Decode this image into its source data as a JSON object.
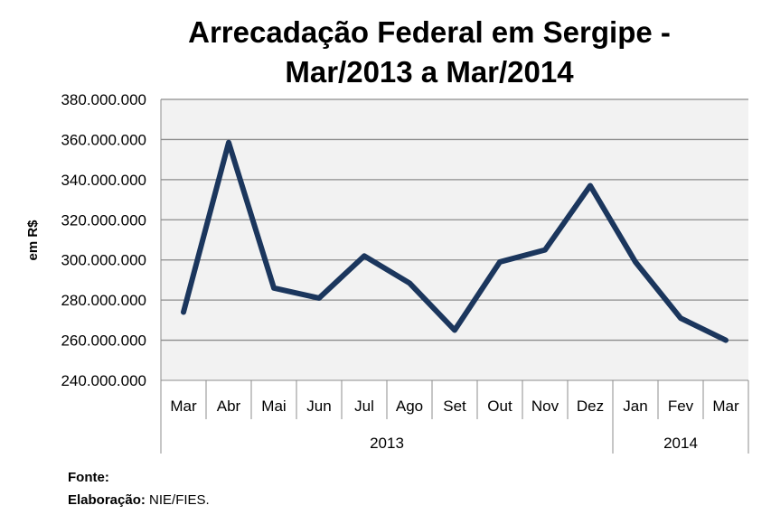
{
  "chart_data": {
    "type": "line",
    "title": "Arrecadação Federal em Sergipe - Mar/2013 a Mar/2014",
    "title_lines": [
      "Arrecadação Federal em Sergipe -",
      "Mar/2013 a Mar/2014"
    ],
    "ylabel": "em R$",
    "xlabel": "",
    "categories": [
      "Mar",
      "Abr",
      "Mai",
      "Jun",
      "Jul",
      "Ago",
      "Set",
      "Out",
      "Nov",
      "Dez",
      "Jan",
      "Fev",
      "Mar"
    ],
    "year_groups": [
      {
        "label": "2013",
        "count": 10
      },
      {
        "label": "2014",
        "count": 3
      }
    ],
    "values": [
      274000000,
      358500000,
      286000000,
      281000000,
      302000000,
      288500000,
      265000000,
      299000000,
      305000000,
      337000000,
      299000000,
      271000000,
      260000000
    ],
    "ylim": [
      240000000,
      380000000
    ],
    "yticks": [
      "240.000.000",
      "260.000.000",
      "280.000.000",
      "300.000.000",
      "320.000.000",
      "340.000.000",
      "360.000.000",
      "380.000.000"
    ],
    "grid": true,
    "legend": "none",
    "line_color": "#1B365D",
    "plot_bg": "#F2F2F2"
  },
  "footer": {
    "fonte_label": "Fonte:",
    "elab_label": "Elaboração:",
    "elab_value": "NIE/FIES."
  }
}
